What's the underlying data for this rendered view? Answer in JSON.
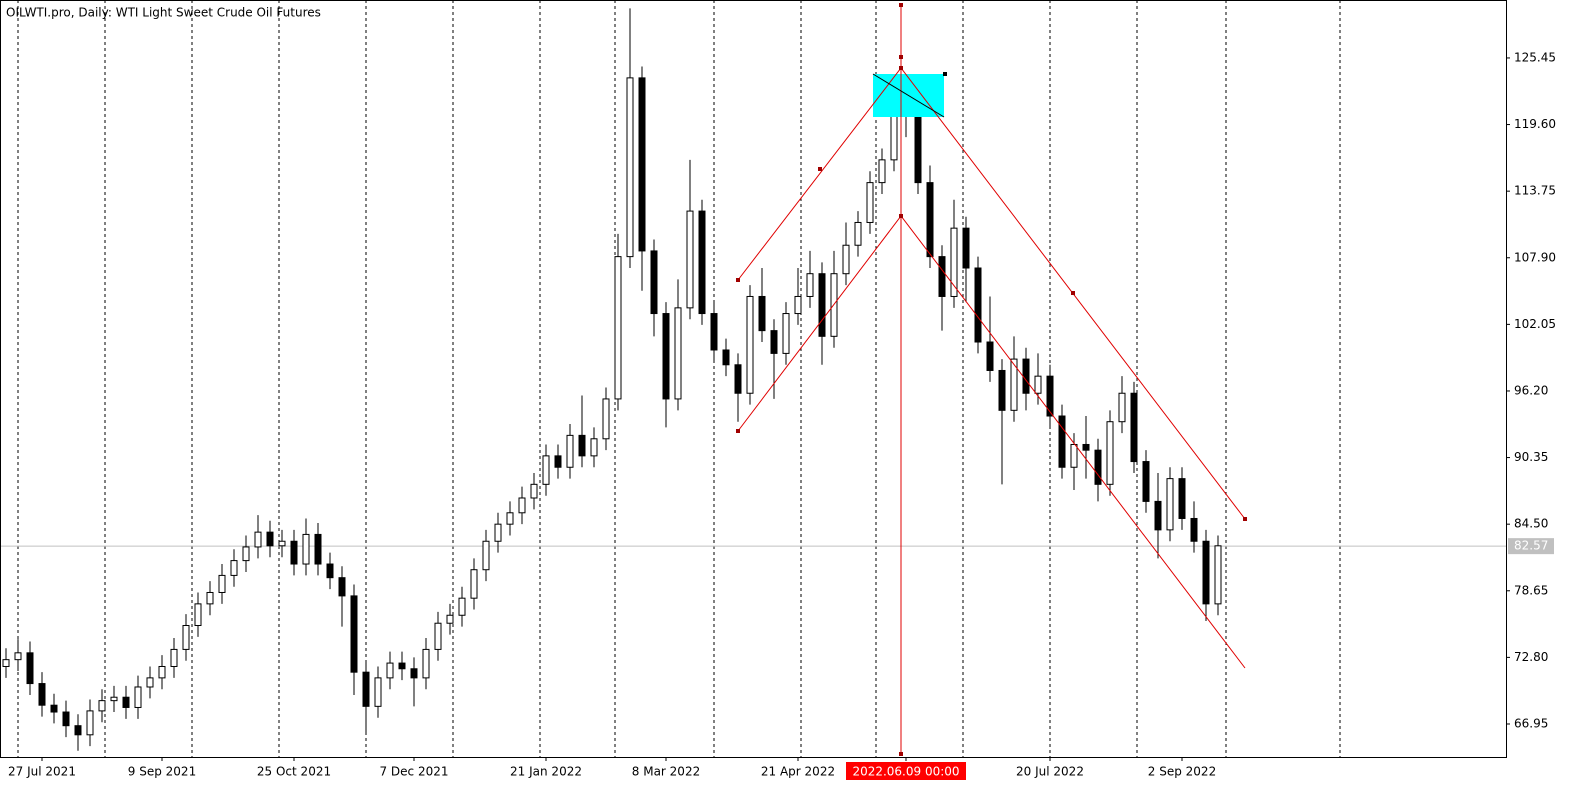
{
  "chart_data": {
    "type": "candlestick",
    "title": "OILWTI.pro, Daily:  WTI Light Sweet Crude Oil Futures",
    "categories": [
      null,
      null,
      null,
      "27 Jul 2021",
      null,
      null,
      null,
      null,
      null,
      null,
      null,
      null,
      null,
      "9 Sep 2021",
      null,
      null,
      null,
      null,
      null,
      null,
      null,
      null,
      null,
      null,
      "25 Oct 2021",
      null,
      null,
      null,
      null,
      null,
      null,
      null,
      null,
      null,
      "7 Dec 2021",
      null,
      null,
      null,
      null,
      null,
      null,
      null,
      null,
      null,
      null,
      "21 Jan 2022",
      null,
      null,
      null,
      null,
      null,
      null,
      null,
      null,
      null,
      "8 Mar 2022",
      null,
      null,
      null,
      null,
      null,
      null,
      null,
      null,
      null,
      null,
      "21 Apr 2022",
      null,
      null,
      null,
      null,
      null,
      null,
      null,
      null,
      "2022.06.09 00:00",
      null,
      null,
      null,
      null,
      null,
      null,
      null,
      null,
      null,
      null,
      null,
      "20 Jul 2022",
      null,
      null,
      null,
      null,
      null,
      null,
      null,
      null,
      null,
      null,
      "2 Sep 2022",
      null,
      null,
      null
    ],
    "open": [
      72.0,
      72.6,
      73.2,
      70.5,
      68.6,
      68.0,
      66.8,
      66.0,
      68.1,
      69.0,
      69.3,
      68.4,
      70.2,
      71.0,
      72.0,
      73.5,
      75.6,
      77.5,
      78.5,
      80.0,
      81.3,
      82.5,
      83.8,
      82.6,
      83.0,
      81.0,
      83.6,
      81.0,
      79.8,
      78.2,
      71.5,
      68.5,
      71.0,
      72.3,
      71.8,
      71.0,
      73.5,
      75.8,
      76.5,
      78.0,
      80.5,
      83.0,
      84.5,
      85.5,
      86.8,
      88.0,
      90.5,
      89.5,
      92.3,
      90.5,
      92.0,
      95.5,
      108.0,
      123.7,
      108.5,
      103.0,
      95.5,
      103.5,
      112.0,
      103.0,
      99.8,
      98.5,
      96.0,
      104.5,
      101.5,
      99.5,
      103.0,
      104.5,
      106.5,
      101.0,
      106.5,
      109.0,
      111.0,
      114.5,
      116.5,
      120.5,
      121.0,
      114.5,
      108.0,
      104.5,
      110.5,
      107.0,
      100.5,
      98.0,
      94.5,
      99.0,
      96.0,
      97.5,
      94.0,
      89.5,
      91.5,
      91.0,
      88.0,
      93.5,
      96.0,
      90.0,
      86.5,
      84.0,
      88.5,
      85.0,
      83.0,
      77.5
    ],
    "high": [
      73.6,
      74.4,
      74.2,
      71.5,
      69.6,
      69.0,
      67.8,
      69.1,
      70.0,
      70.3,
      70.3,
      71.2,
      72.0,
      73.0,
      74.5,
      76.6,
      78.5,
      79.5,
      81.0,
      82.3,
      83.5,
      85.3,
      84.8,
      84.0,
      84.0,
      85.0,
      84.6,
      82.0,
      80.8,
      79.2,
      72.5,
      72.0,
      73.3,
      73.3,
      72.8,
      74.5,
      76.8,
      77.5,
      79.0,
      81.5,
      84.0,
      85.5,
      86.5,
      87.8,
      89.0,
      91.5,
      91.5,
      93.3,
      95.8,
      93.0,
      96.5,
      110.0,
      129.8,
      124.7,
      109.5,
      104.0,
      106.0,
      116.5,
      113.0,
      104.0,
      100.8,
      99.5,
      105.5,
      107.0,
      102.5,
      104.0,
      107.0,
      108.5,
      107.5,
      108.5,
      111.0,
      112.0,
      115.5,
      117.5,
      123.5,
      123.5,
      122.0,
      116.0,
      109.0,
      113.0,
      111.5,
      108.0,
      104.5,
      99.0,
      101.0,
      100.0,
      99.5,
      98.5,
      95.0,
      92.5,
      94.0,
      92.0,
      94.5,
      97.5,
      97.0,
      91.0,
      89.0,
      89.5,
      89.5,
      86.5,
      84.0,
      83.5
    ],
    "low": [
      71.0,
      71.6,
      69.5,
      67.6,
      67.0,
      65.8,
      64.6,
      65.0,
      67.1,
      68.0,
      67.4,
      67.4,
      69.2,
      70.0,
      71.0,
      72.5,
      74.6,
      76.5,
      77.5,
      79.0,
      80.3,
      81.5,
      81.6,
      81.6,
      80.0,
      80.0,
      80.0,
      78.8,
      75.5,
      69.5,
      66.0,
      67.5,
      70.0,
      70.8,
      68.5,
      70.0,
      72.5,
      74.8,
      75.5,
      77.0,
      79.5,
      82.0,
      83.5,
      84.5,
      85.8,
      87.0,
      88.5,
      88.5,
      89.5,
      89.5,
      91.0,
      94.5,
      107.0,
      105.0,
      101.0,
      93.0,
      94.5,
      102.5,
      102.0,
      98.8,
      97.5,
      93.5,
      95.0,
      100.5,
      95.5,
      98.5,
      102.0,
      103.5,
      98.5,
      100.0,
      105.5,
      108.0,
      110.0,
      113.5,
      115.5,
      118.5,
      113.5,
      107.0,
      101.5,
      103.5,
      104.0,
      99.5,
      97.0,
      88.0,
      93.5,
      94.5,
      95.0,
      93.0,
      88.5,
      87.5,
      88.5,
      86.5,
      87.0,
      92.5,
      89.0,
      85.5,
      81.5,
      83.0,
      84.0,
      82.0,
      76.0,
      76.5
    ],
    "close": [
      72.6,
      73.2,
      70.5,
      68.6,
      68.0,
      66.8,
      66.0,
      68.1,
      69.0,
      69.3,
      68.4,
      70.2,
      71.0,
      72.0,
      73.5,
      75.6,
      77.5,
      78.5,
      80.0,
      81.3,
      82.5,
      83.8,
      82.6,
      83.0,
      81.0,
      83.6,
      81.0,
      79.8,
      78.2,
      71.5,
      68.5,
      71.0,
      72.3,
      71.8,
      71.0,
      73.5,
      75.8,
      76.5,
      78.0,
      80.5,
      83.0,
      84.5,
      85.5,
      86.8,
      88.0,
      90.5,
      89.5,
      92.3,
      90.5,
      92.0,
      95.5,
      108.0,
      123.7,
      108.5,
      103.0,
      95.5,
      103.5,
      112.0,
      103.0,
      99.8,
      98.5,
      96.0,
      104.5,
      101.5,
      99.5,
      103.0,
      104.5,
      106.5,
      101.0,
      106.5,
      109.0,
      111.0,
      114.5,
      116.5,
      120.5,
      121.0,
      114.5,
      108.0,
      104.5,
      110.5,
      107.0,
      100.5,
      98.0,
      94.5,
      99.0,
      96.0,
      97.5,
      94.0,
      89.5,
      91.5,
      91.0,
      88.0,
      93.5,
      96.0,
      90.0,
      86.5,
      84.0,
      88.5,
      85.0,
      83.0,
      77.5,
      82.6
    ],
    "last_price": 82.57,
    "ylim": [
      64.05,
      130.54
    ],
    "yticks": [
      66.95,
      {
        "value": 72.8,
        "label": "72.80"
      },
      78.65,
      {
        "value": 84.5,
        "label": "84.50"
      },
      90.35,
      {
        "value": 96.2,
        "label": "96.20"
      },
      102.05,
      {
        "value": 107.9,
        "label": "107.90"
      },
      113.75,
      {
        "value": 119.6,
        "label": "119.60"
      },
      125.45
    ],
    "up_color": "#ffffff",
    "down_color": "#000000"
  }
}
